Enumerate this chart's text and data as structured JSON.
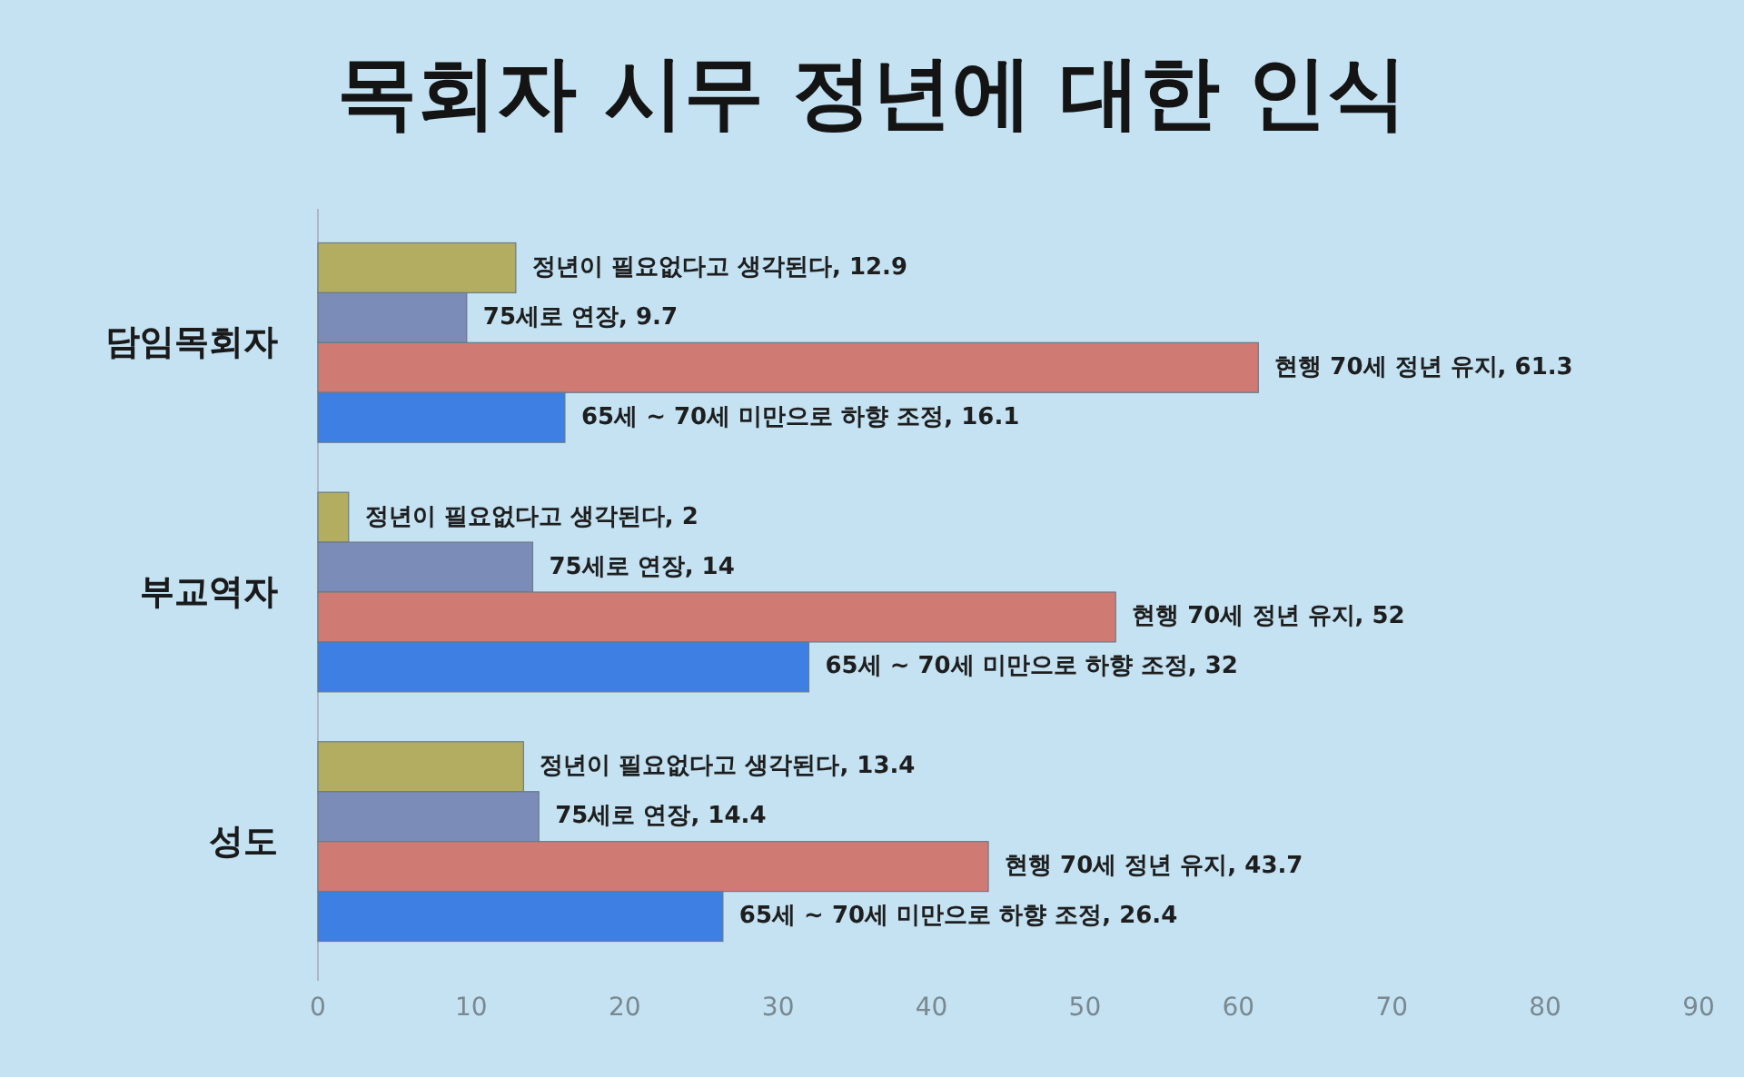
{
  "chart_data": {
    "type": "bar",
    "orientation": "horizontal",
    "title": "목회자 시무 정년에 대한 인식",
    "categories": [
      "담임목회자",
      "부교역자",
      "성도"
    ],
    "series": [
      {
        "color": "#b3ad62",
        "values": [
          12.9,
          2,
          13.4
        ],
        "value_labels": [
          "정년이 필요없다고 생각된다, 12.9",
          "정년이 필요없다고 생각된다, 2",
          "정년이 필요없다고 생각된다, 13.4"
        ]
      },
      {
        "color": "#7c8cb8",
        "values": [
          9.7,
          14,
          14.4
        ],
        "value_labels": [
          "75세로 연장, 9.7",
          "75세로 연장, 14",
          "75세로 연장, 14.4"
        ]
      },
      {
        "color": "#d07a74",
        "values": [
          61.3,
          52,
          43.7
        ],
        "value_labels": [
          "현행 70세 정년 유지, 61.3",
          "현행 70세 정년 유지, 52",
          "현행 70세 정년 유지, 43.7"
        ]
      },
      {
        "color": "#3e7fe3",
        "values": [
          16.1,
          32,
          26.4
        ],
        "value_labels": [
          "65세 ~ 70세 미만으로 하향 조정, 16.1",
          "65세 ~ 70세 미만으로 하향 조정, 32",
          "65세 ~ 70세 미만으로 하향 조정, 26.4"
        ]
      }
    ],
    "xlim": [
      0,
      90
    ],
    "xticks": [
      0,
      10,
      20,
      30,
      40,
      50,
      60,
      70,
      80,
      90
    ]
  }
}
